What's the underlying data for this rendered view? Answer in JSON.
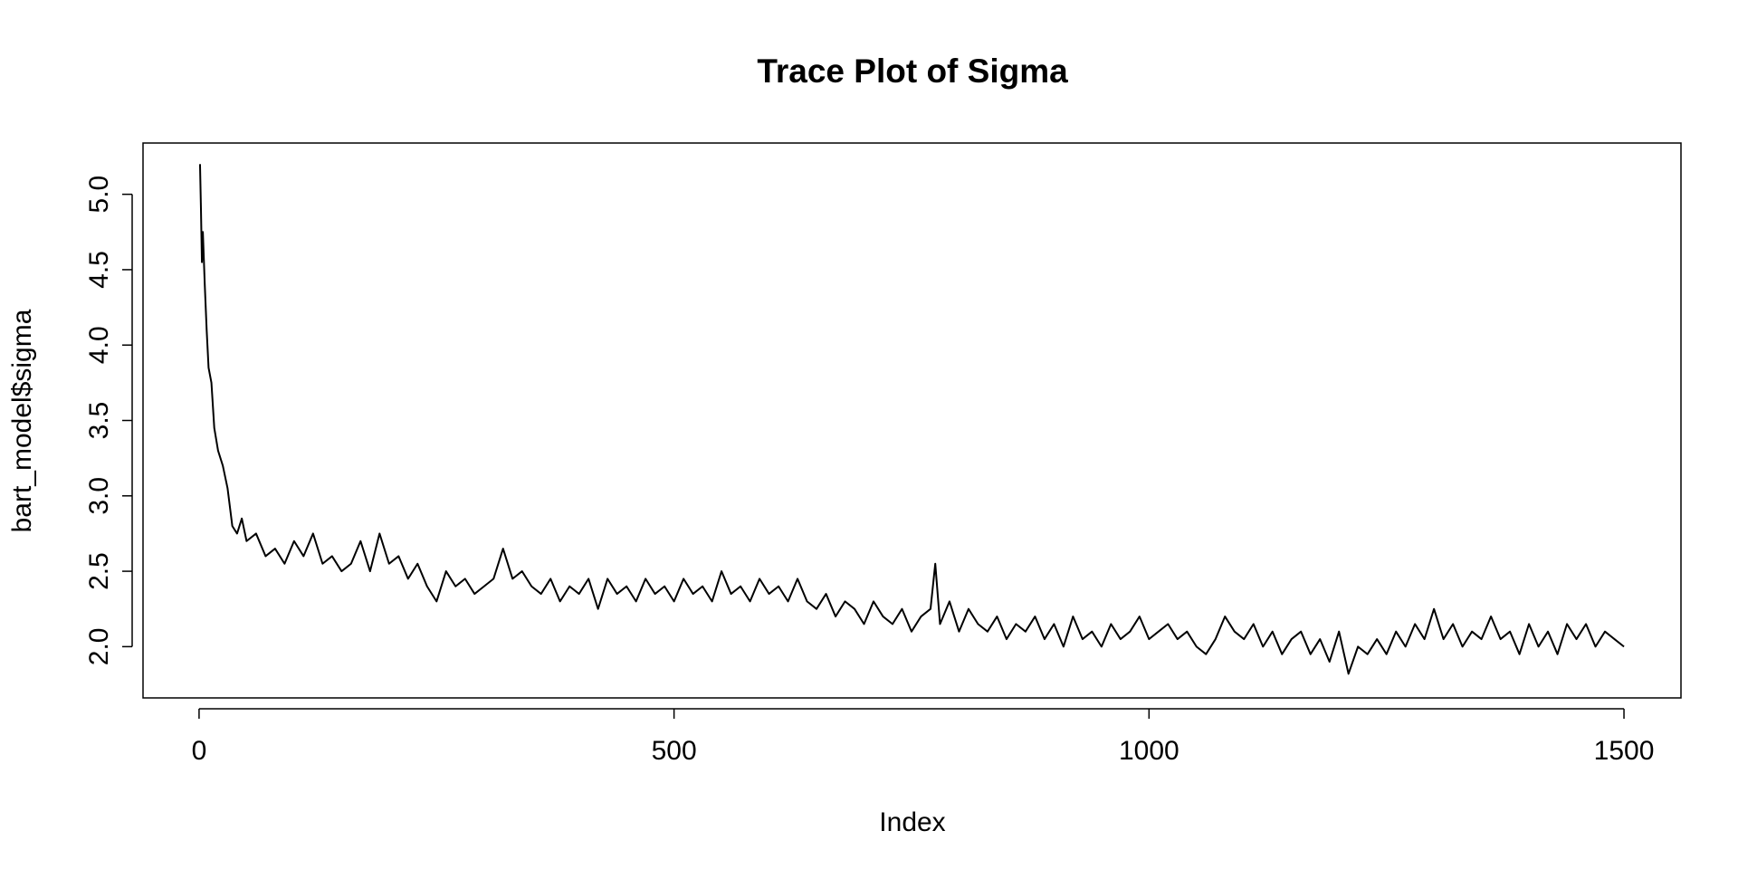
{
  "chart_data": {
    "type": "line",
    "title": "Trace Plot of Sigma",
    "x_label": "Index",
    "y_label": "bart_model$sigma",
    "color": "#000000",
    "grid": false,
    "xlim": [
      -59,
      1560
    ],
    "xticks": [
      0,
      500,
      1000,
      1500
    ],
    "ylim": [
      1.66,
      5.34
    ],
    "yticks": [
      {
        "value": 2,
        "label": "2.0"
      },
      {
        "value": 2.5,
        "label": "2.5"
      },
      {
        "value": 3,
        "label": "3.0"
      },
      {
        "value": 3.5,
        "label": "3.5"
      },
      {
        "value": 4,
        "label": "4.0"
      },
      {
        "value": 4.5,
        "label": "4.5"
      },
      {
        "value": 5,
        "label": "5.0"
      }
    ],
    "x": [
      1,
      2,
      3,
      4,
      6,
      8,
      10,
      13,
      16,
      20,
      25,
      30,
      35,
      40,
      45,
      50,
      60,
      70,
      80,
      90,
      100,
      110,
      120,
      130,
      140,
      150,
      160,
      170,
      180,
      190,
      200,
      210,
      220,
      230,
      240,
      250,
      260,
      270,
      280,
      290,
      300,
      310,
      320,
      330,
      340,
      350,
      360,
      370,
      380,
      390,
      400,
      410,
      420,
      430,
      440,
      450,
      460,
      470,
      480,
      490,
      500,
      510,
      520,
      530,
      540,
      550,
      560,
      570,
      580,
      590,
      600,
      610,
      620,
      630,
      640,
      650,
      660,
      670,
      680,
      690,
      700,
      710,
      720,
      730,
      740,
      750,
      760,
      770,
      775,
      780,
      790,
      800,
      810,
      820,
      830,
      840,
      850,
      860,
      870,
      880,
      890,
      900,
      910,
      920,
      930,
      940,
      950,
      960,
      970,
      980,
      990,
      1000,
      1010,
      1020,
      1030,
      1040,
      1050,
      1060,
      1070,
      1080,
      1090,
      1100,
      1110,
      1120,
      1130,
      1140,
      1150,
      1160,
      1170,
      1180,
      1190,
      1200,
      1210,
      1220,
      1230,
      1240,
      1250,
      1260,
      1270,
      1280,
      1290,
      1300,
      1310,
      1320,
      1330,
      1340,
      1350,
      1360,
      1370,
      1380,
      1390,
      1400,
      1410,
      1420,
      1430,
      1440,
      1450,
      1460,
      1470,
      1480,
      1490,
      1500
    ],
    "values": [
      5.2,
      4.9,
      4.55,
      4.75,
      4.4,
      4.1,
      3.85,
      3.75,
      3.45,
      3.3,
      3.2,
      3.05,
      2.8,
      2.75,
      2.85,
      2.7,
      2.75,
      2.6,
      2.65,
      2.55,
      2.7,
      2.6,
      2.75,
      2.55,
      2.6,
      2.5,
      2.55,
      2.7,
      2.5,
      2.75,
      2.55,
      2.6,
      2.45,
      2.55,
      2.4,
      2.3,
      2.5,
      2.4,
      2.45,
      2.35,
      2.4,
      2.45,
      2.65,
      2.45,
      2.5,
      2.4,
      2.35,
      2.45,
      2.3,
      2.4,
      2.35,
      2.45,
      2.25,
      2.45,
      2.35,
      2.4,
      2.3,
      2.45,
      2.35,
      2.4,
      2.3,
      2.45,
      2.35,
      2.4,
      2.3,
      2.5,
      2.35,
      2.4,
      2.3,
      2.45,
      2.35,
      2.4,
      2.3,
      2.45,
      2.3,
      2.25,
      2.35,
      2.2,
      2.3,
      2.25,
      2.15,
      2.3,
      2.2,
      2.15,
      2.25,
      2.1,
      2.2,
      2.25,
      2.55,
      2.15,
      2.3,
      2.1,
      2.25,
      2.15,
      2.1,
      2.2,
      2.05,
      2.15,
      2.1,
      2.2,
      2.05,
      2.15,
      2.0,
      2.2,
      2.05,
      2.1,
      2.0,
      2.15,
      2.05,
      2.1,
      2.2,
      2.05,
      2.1,
      2.15,
      2.05,
      2.1,
      2.0,
      1.95,
      2.05,
      2.2,
      2.1,
      2.05,
      2.15,
      2.0,
      2.1,
      1.95,
      2.05,
      2.1,
      1.95,
      2.05,
      1.9,
      2.1,
      1.82,
      2.0,
      1.95,
      2.05,
      1.95,
      2.1,
      2.0,
      2.15,
      2.05,
      2.25,
      2.05,
      2.15,
      2.0,
      2.1,
      2.05,
      2.2,
      2.05,
      2.1,
      1.95,
      2.15,
      2.0,
      2.1,
      1.95,
      2.15,
      2.05,
      2.15,
      2.0,
      2.1,
      2.05,
      2.0
    ]
  }
}
